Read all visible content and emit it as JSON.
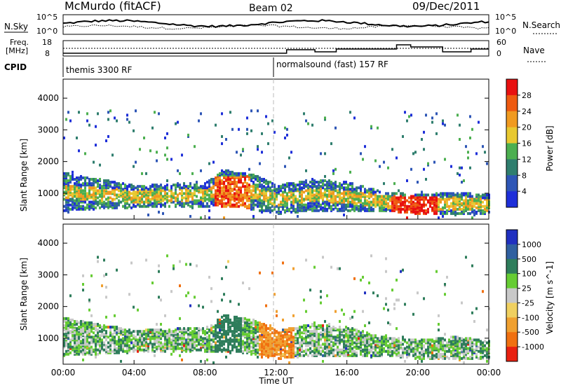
{
  "header": {
    "title": "McMurdo (fitACF)",
    "beam": "Beam 02",
    "date": "09/Dec/2011"
  },
  "status_panels": {
    "nsky_label": "N.Sky",
    "nsearch_label": "N.Search",
    "nsky_ticks": [
      "10^5",
      "10^0"
    ],
    "nsearch_ticks": [
      "10^5",
      "10^0"
    ],
    "freq_label": "Freq.",
    "freq_unit": "[MHz]",
    "freq_ticks": [
      18,
      8
    ],
    "nave_label": "Nave",
    "nave_ticks": [
      60,
      0
    ],
    "cpid_label": "CPID",
    "cpid_segments": [
      "themis 3300 RF",
      "normalsound (fast) 157 RF"
    ]
  },
  "colors": {
    "power_scale": [
      "#1e2fd9",
      "#2e56b6",
      "#2f7e6e",
      "#4caf50",
      "#e8c830",
      "#f09a20",
      "#ee5a10",
      "#e81010"
    ],
    "velocity_scale": [
      "#2030c0",
      "#3060a0",
      "#2e7d5b",
      "#66cc33",
      "#c8c8c8",
      "#f0d060",
      "#f0a030",
      "#f07010",
      "#e82010"
    ]
  },
  "chart_data": [
    {
      "type": "heatmap",
      "title": "",
      "xlabel": "",
      "ylabel": "Slant Range [km]",
      "x_ticks": [
        "00:00",
        "04:00",
        "08:00",
        "12:00",
        "16:00",
        "20:00",
        "00:00"
      ],
      "y_ticks": [
        1000,
        2000,
        3000,
        4000
      ],
      "xlim_hours": [
        0,
        24
      ],
      "ylim_km": [
        180,
        4600
      ],
      "colorbar": {
        "label": "Power [dB]",
        "ticks": [
          4,
          8,
          12,
          16,
          20,
          24,
          28
        ],
        "range": [
          0,
          30
        ]
      },
      "description_series": [
        {
          "name": "scatter_band",
          "x_hours": [
            0,
            4,
            8,
            9,
            10,
            11,
            12,
            14,
            16,
            18,
            20,
            22,
            24
          ],
          "y_range_km": [
            [
              400,
              1600
            ],
            [
              500,
              1200
            ],
            [
              500,
              1300
            ],
            [
              500,
              1700
            ],
            [
              500,
              1600
            ],
            [
              400,
              1500
            ],
            [
              300,
              1200
            ],
            [
              400,
              1400
            ],
            [
              400,
              1300
            ],
            [
              400,
              1000
            ],
            [
              300,
              900
            ],
            [
              300,
              1000
            ],
            [
              300,
              900
            ]
          ]
        }
      ]
    },
    {
      "type": "heatmap",
      "title": "",
      "xlabel": "Time UT",
      "ylabel": "Slant Range [km]",
      "x_ticks": [
        "00:00",
        "04:00",
        "08:00",
        "12:00",
        "16:00",
        "20:00",
        "00:00"
      ],
      "y_ticks": [
        1000,
        2000,
        3000,
        4000
      ],
      "xlim_hours": [
        0,
        24
      ],
      "ylim_km": [
        180,
        4600
      ],
      "colorbar": {
        "label": "Velocity [m s^-1]",
        "ticks": [
          "1000",
          "500",
          "100",
          "25",
          "-25",
          "-100",
          "-500",
          "-1000"
        ]
      }
    }
  ]
}
